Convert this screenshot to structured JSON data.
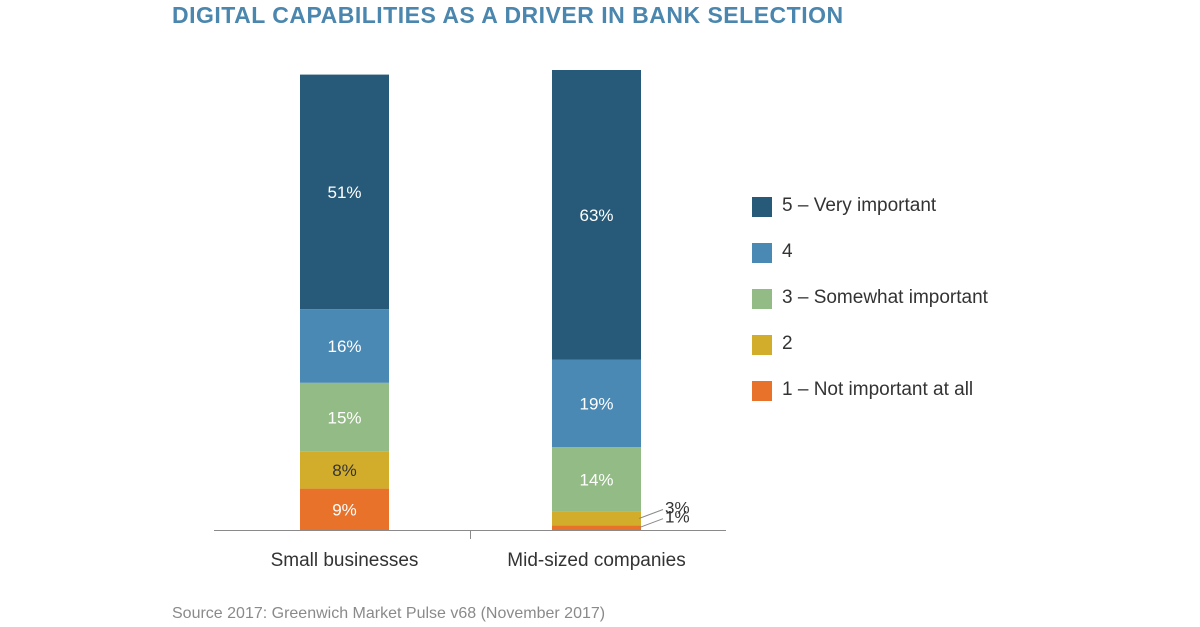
{
  "title": "DIGITAL CAPABILITIES AS A DRIVER IN BANK SELECTION",
  "source": "Source 2017: Greenwich Market Pulse v68 (November 2017)",
  "colors": {
    "title": "#4a86ad",
    "level5": "#265a78",
    "level4": "#4a89b3",
    "level3": "#93bb85",
    "level2": "#d2ad2c",
    "level1": "#e8722a"
  },
  "chart_data": {
    "type": "bar",
    "stacked": true,
    "categories": [
      "Small businesses",
      "Mid-sized companies"
    ],
    "series": [
      {
        "name": "1 – Not important at all",
        "color": "#e8722a",
        "values": [
          9,
          1
        ],
        "labels": [
          "9%",
          "1%"
        ]
      },
      {
        "name": "2",
        "color": "#d2ad2c",
        "values": [
          8,
          3
        ],
        "labels": [
          "8%",
          "3%"
        ]
      },
      {
        "name": "3 – Somewhat important",
        "color": "#93bb85",
        "values": [
          15,
          14
        ],
        "labels": [
          "15%",
          "14%"
        ]
      },
      {
        "name": "4",
        "color": "#4a89b3",
        "values": [
          16,
          19
        ],
        "labels": [
          "16%",
          "19%"
        ]
      },
      {
        "name": "5 – Very important",
        "color": "#265a78",
        "values": [
          51,
          63
        ],
        "labels": [
          "51%",
          "63%"
        ]
      }
    ],
    "legend_order": [
      "5 – Very important",
      "4",
      "3 – Somewhat important",
      "2",
      "1 – Not important at all"
    ],
    "legend_position": "right",
    "grid": false
  }
}
